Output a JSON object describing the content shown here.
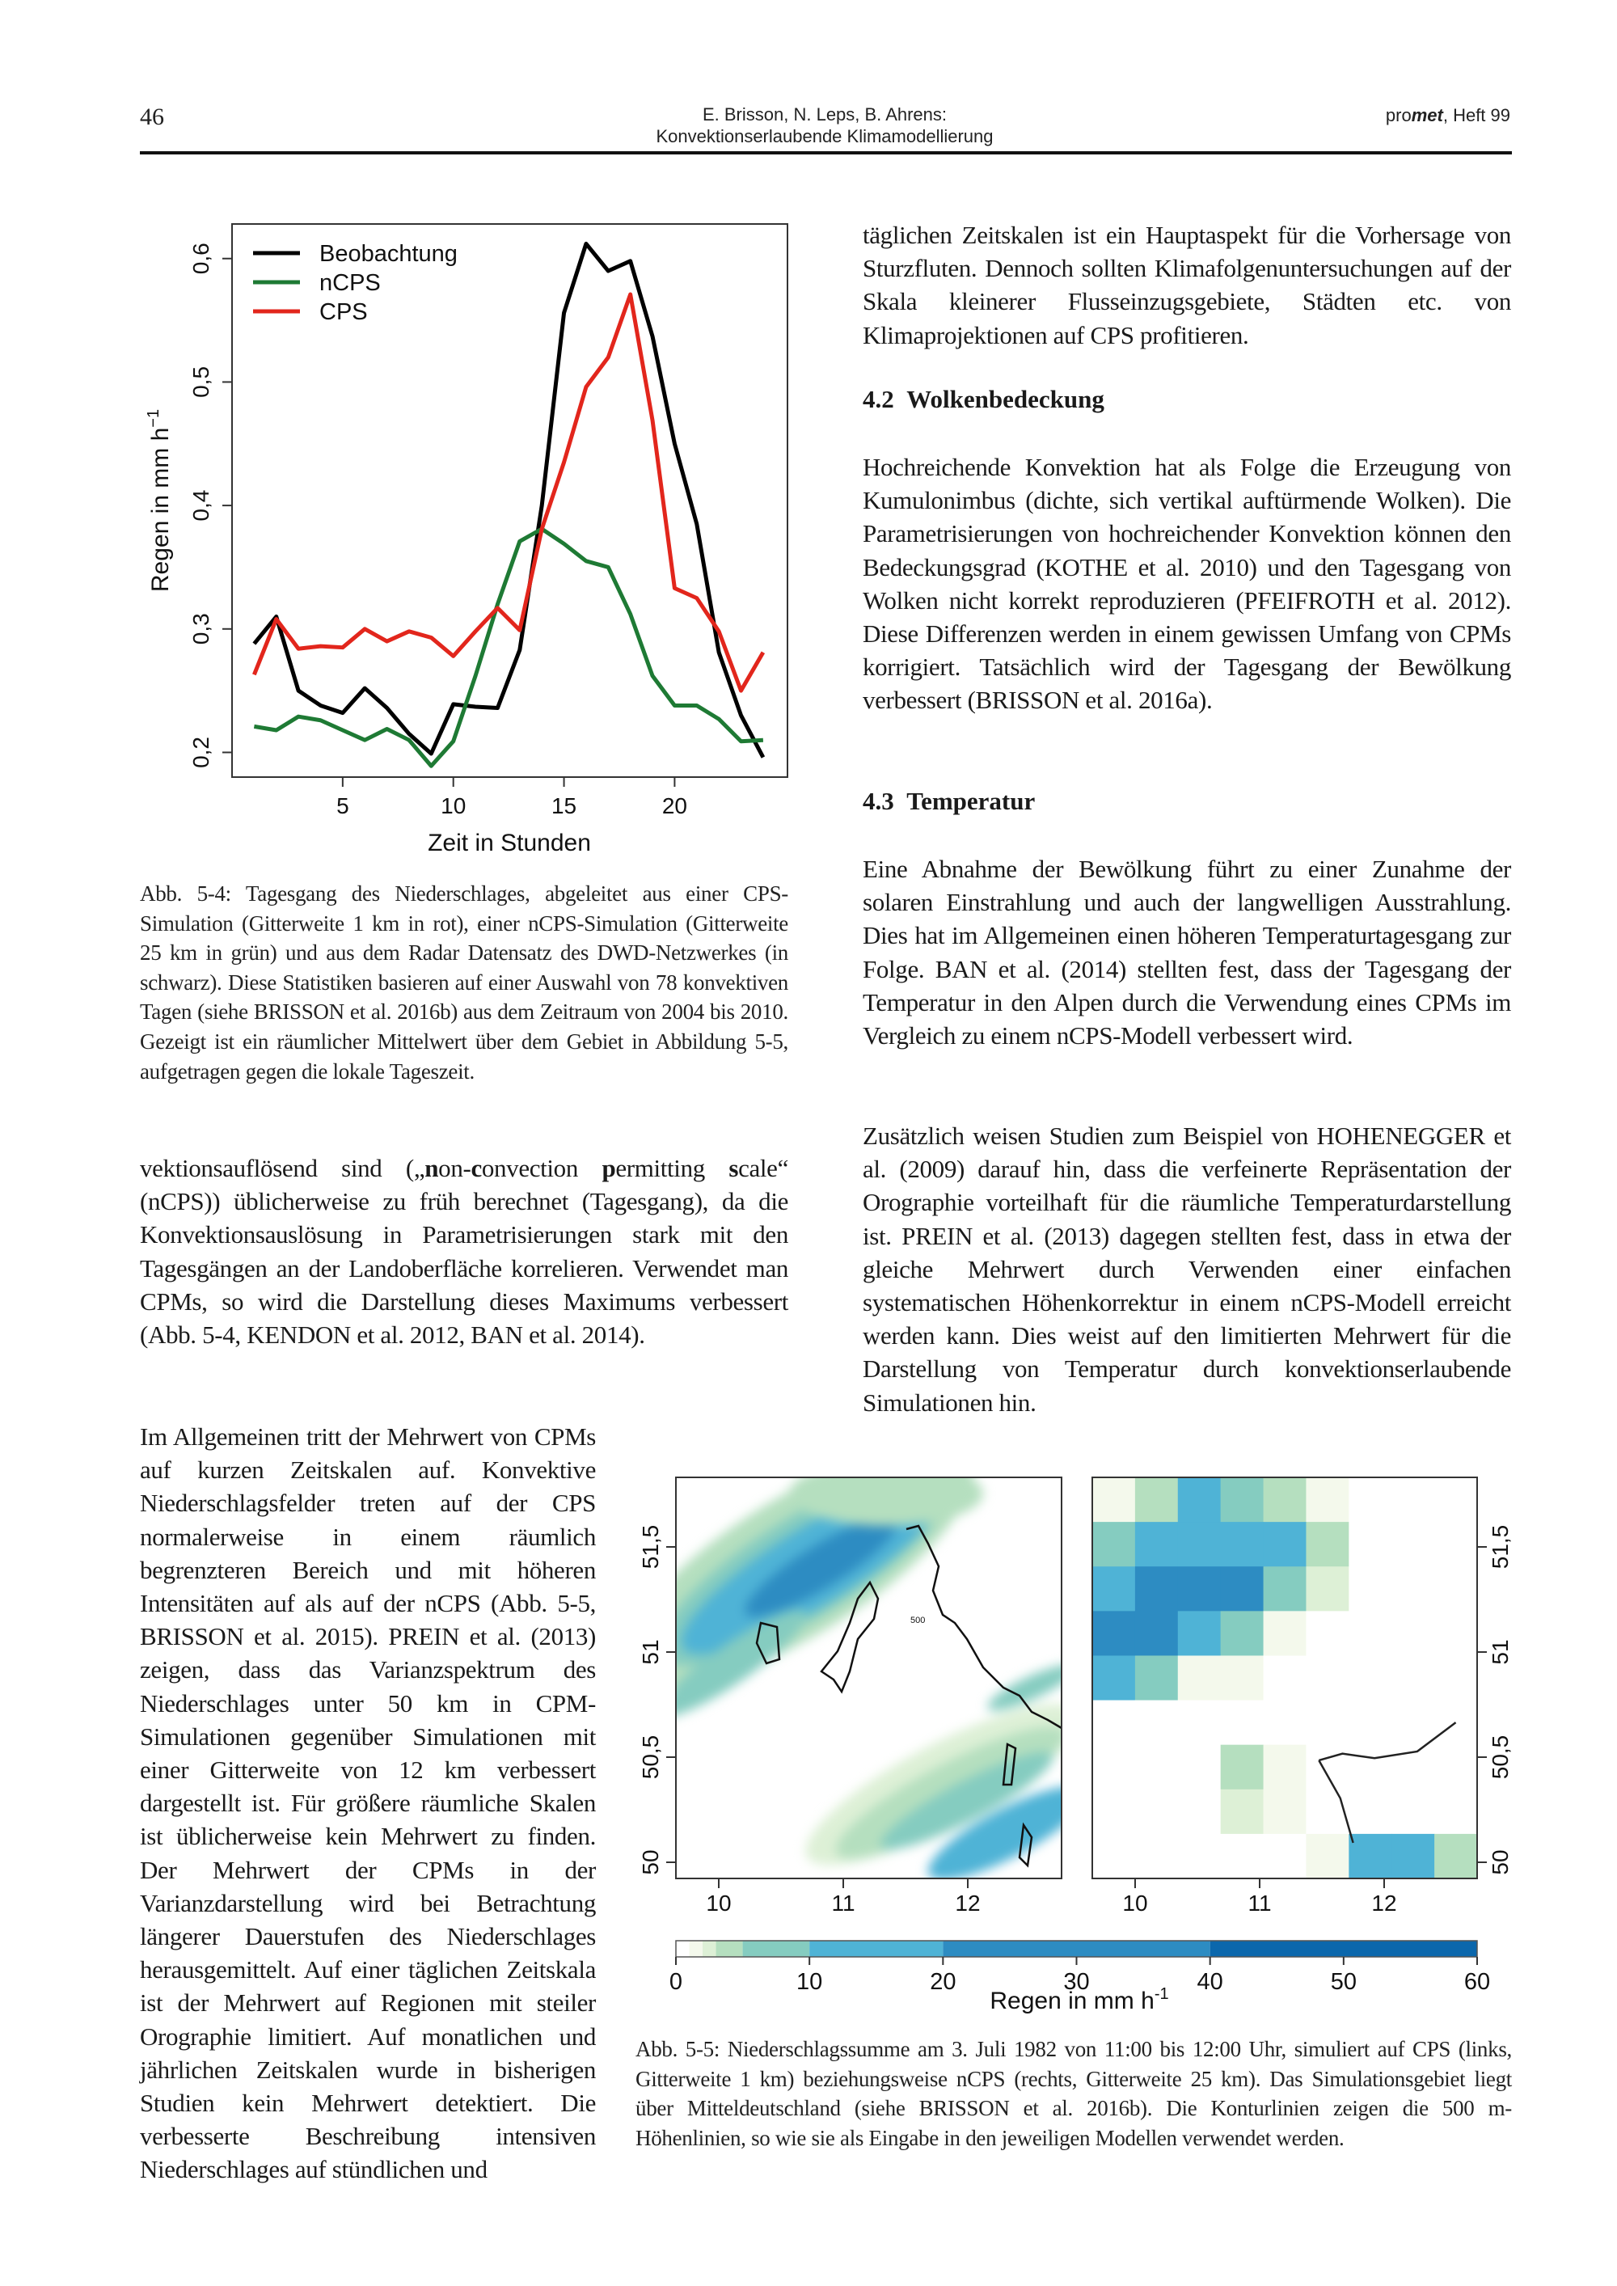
{
  "header": {
    "page_number": "46",
    "authors": "E. Brisson, N. Leps, B. Ahrens:",
    "title": "Konvektionserlaubende Klimamodellierung",
    "journal_prefix": "pro",
    "journal_bold": "met",
    "journal_suffix": ", Heft 99"
  },
  "chart_data": {
    "type": "line",
    "title": "",
    "xlabel": "Zeit in Stunden",
    "ylabel": "Regen in mm h",
    "ylabel_sup": "−1",
    "x": [
      1,
      2,
      3,
      4,
      5,
      6,
      7,
      8,
      9,
      10,
      11,
      12,
      13,
      14,
      15,
      16,
      17,
      18,
      19,
      20,
      21,
      22,
      23,
      24
    ],
    "xlim": [
      0,
      25.1
    ],
    "ylim": [
      0.18,
      0.628
    ],
    "xticks": [
      5,
      10,
      15,
      20
    ],
    "xtick_labels": [
      "5",
      "10",
      "15",
      "20"
    ],
    "yticks": [
      0.2,
      0.3,
      0.4,
      0.5,
      0.6
    ],
    "ytick_labels": [
      "0,2",
      "0,3",
      "0,4",
      "0,5",
      "0,6"
    ],
    "grid": false,
    "legend_position": "top-left",
    "series": [
      {
        "name": "Beobachtung",
        "color": "#000000",
        "values": [
          0.288,
          0.31,
          0.25,
          0.238,
          0.232,
          0.252,
          0.236,
          0.215,
          0.199,
          0.239,
          0.237,
          0.236,
          0.283,
          0.4,
          0.556,
          0.612,
          0.59,
          0.598,
          0.537,
          0.45,
          0.385,
          0.281,
          0.23,
          0.196
        ]
      },
      {
        "name": "nCPS",
        "color": "#1e7a34",
        "values": [
          0.221,
          0.218,
          0.229,
          0.226,
          0.218,
          0.21,
          0.219,
          0.21,
          0.189,
          0.209,
          0.262,
          0.32,
          0.371,
          0.381,
          0.369,
          0.355,
          0.35,
          0.312,
          0.262,
          0.238,
          0.238,
          0.227,
          0.209,
          0.21
        ]
      },
      {
        "name": "CPS",
        "color": "#e2261c",
        "values": [
          0.263,
          0.308,
          0.284,
          0.286,
          0.285,
          0.3,
          0.29,
          0.298,
          0.293,
          0.278,
          0.298,
          0.317,
          0.299,
          0.381,
          0.435,
          0.496,
          0.52,
          0.571,
          0.469,
          0.333,
          0.325,
          0.298,
          0.25,
          0.281
        ]
      }
    ]
  },
  "caption_54": "Abb. 5-4: Tagesgang des Niederschlages, abgeleitet aus einer CPS-Simulation (Gitterweite 1 km in rot), einer nCPS-Simulation (Gitterweite 25 km in grün) und aus dem Radar Datensatz des DWD-Netzwerkes (in schwarz). Diese Statistiken basieren auf einer Auswahl von 78 konvektiven Tagen (siehe BRISSON et al. 2016b) aus dem Zeitraum von 2004 bis 2010. Gezeigt ist ein räumlicher Mittelwert über dem Gebiet in Abbildung 5-5, aufge­tragen gegen die lokale Tageszeit.",
  "left_para": {
    "a": "vektionsauflösend sind („",
    "n": "n",
    "b": "on-",
    "c": "c",
    "d": "onvection ",
    "p": "p",
    "e": "ermitting ",
    "s": "s",
    "f": "cale“ (nCPS)) üblicherweise zu früh berechnet (Tagesgang), da die Konvektionsauslösung in Parametrisierungen stark mit den Tagesgängen an der Landoberfläche korrelieren. Ver­wendet man CPMs, so wird die Darstellung dieses Maxi­mums verbessert (Abb. 5-4, KENDON et al. 2012, BAN et al. 2014)."
  },
  "narrow_para": "Im Allgemeinen tritt der Mehrwert von CPMs auf kurzen Zeitskalen auf. Kon­vektive Niederschlagsfelder treten auf der CPS normalerweise in einem räumlich begrenzteren Bereich und mit höheren Intensitäten auf als auf der nCPS (Abb. 5-5, BRISSON et al. 2015). PREIN et al. (2013) zeigen, dass das Varianzspektrum des Niederschlages unter 50 km in CPM-Simulationen gegenüber Simulationen mit einer Gitterweite von 12 km verbes­sert dargestellt ist. Für größere räumliche Skalen ist üblicherweise kein Mehrwert zu finden. Der Mehrwert der CPMs in der Varianzdarstellung wird bei Betrachtung längerer Dauerstufen des Niederschlages herausgemittelt. Auf einer täglichen Zeit­skala ist der Mehrwert auf Regionen mit steiler Orographie limitiert. Auf monatli­chen und jährlichen Zeitskalen wurde in bisherigen Studien kein Mehrwert detek­tiert. Die verbesserte Beschreibung inten­siven Niederschlages auf stündlichen und",
  "right_col": {
    "p1": "täglichen Zeitskalen ist ein Hauptaspekt für die Vorhersage von Sturzfluten. Dennoch sollten Klimafolgenuntersuchun­gen auf der Skala kleinerer Flusseinzugsgebiete, Städten etc. von Klimaprojektionen auf CPS profitieren.",
    "h42_num": "4.2",
    "h42": "Wolkenbedeckung",
    "p2": "Hochreichende Konvektion hat als Folge die Erzeugung von Kumulonimbus (dichte, sich vertikal auftürmende Wolken). Die Parametrisierungen von hochreichender Kon­vektion können den Bedeckungsgrad (KOTHE et al. 2010) und den Tagesgang von Wolken nicht korrekt reproduzie­ren (PFEIFROTH et al. 2012). Diese Differenzen werden in einem gewissen Umfang von CPMs korrigiert. Tatsächlich wird der Tagesgang der Bewölkung verbessert (BRISSON et al. 2016a).",
    "h43_num": "4.3",
    "h43": "Temperatur",
    "p3": "Eine Abnahme der Bewölkung führt zu einer Zunahme der solaren Einstrahlung und auch der langwelligen Ausstrah­lung. Dies hat im Allgemeinen einen höheren Temperatur­tagesgang zur Folge. BAN et al. (2014) stellten fest, dass der Tagesgang der Temperatur in den Alpen durch die Ver­wendung eines CPMs im Vergleich zu einem nCPS-Modell verbessert wird.",
    "p4": "Zusätzlich weisen Studien zum Beispiel von HOHEN­EGGER et al. (2009) darauf hin, dass die verfeinerte Re­präsentation der Orographie vorteilhaft für die räumliche Temperaturdarstellung ist. PREIN et al. (2013) dagegen stellten fest, dass in etwa der gleiche Mehrwert durch Ver­wenden einer einfachen systematischen Höhenkorrektur in einem nCPS-Modell erreicht werden kann. Dies weist auf den limitierten Mehrwert für die Darstellung von Tempera­tur durch konvektionserlaubende Simulationen hin."
  },
  "maps": {
    "x_tick_labels": [
      "10",
      "11",
      "12"
    ],
    "y_tick_labels": [
      "50",
      "50,5",
      "51",
      "51,5"
    ],
    "contour_label": "500",
    "colorbar": {
      "label": "Regen in mm h",
      "label_sup": "-1",
      "tick_labels": [
        "0",
        "10",
        "20",
        "30",
        "40",
        "50",
        "60"
      ],
      "breaks": [
        0,
        1,
        2,
        3,
        5,
        10,
        20,
        40,
        60
      ],
      "colors": [
        "#ffffff",
        "#f4f9ec",
        "#ddf0d6",
        "#b5dfbf",
        "#85ccc0",
        "#4fb3d6",
        "#2d8cc2",
        "#0b67ac"
      ]
    },
    "ncps_grid_levels": [
      [
        1,
        3,
        5,
        4,
        3,
        1,
        0,
        0,
        0
      ],
      [
        4,
        5,
        5,
        5,
        5,
        3,
        0,
        0,
        0
      ],
      [
        5,
        6,
        6,
        6,
        4,
        2,
        0,
        0,
        0
      ],
      [
        6,
        6,
        5,
        4,
        1,
        0,
        0,
        0,
        0
      ],
      [
        5,
        4,
        1,
        1,
        0,
        0,
        0,
        0,
        0
      ],
      [
        0,
        0,
        0,
        0,
        0,
        0,
        0,
        0,
        0
      ],
      [
        0,
        0,
        0,
        3,
        1,
        0,
        0,
        0,
        0
      ],
      [
        0,
        0,
        0,
        2,
        1,
        0,
        0,
        0,
        0
      ],
      [
        0,
        0,
        0,
        0,
        0,
        1,
        5,
        5,
        3
      ]
    ]
  },
  "caption_55": "Abb. 5-5: Niederschlagssumme am 3. Juli 1982 von 11:00 bis 12:00 Uhr, simuliert auf CPS (links, Gitterweite 1 km) beziehungsweise nCPS (rechts, Gitterweite 25 km). Das Simulationsgebiet liegt über Mitteldeutschland (siehe BRISSON et al. 2016b). Die Kon­turlinien zeigen die 500 m-Höhenlinien, so wie sie als Eingabe in den jeweiligen Model­len verwendet werden."
}
